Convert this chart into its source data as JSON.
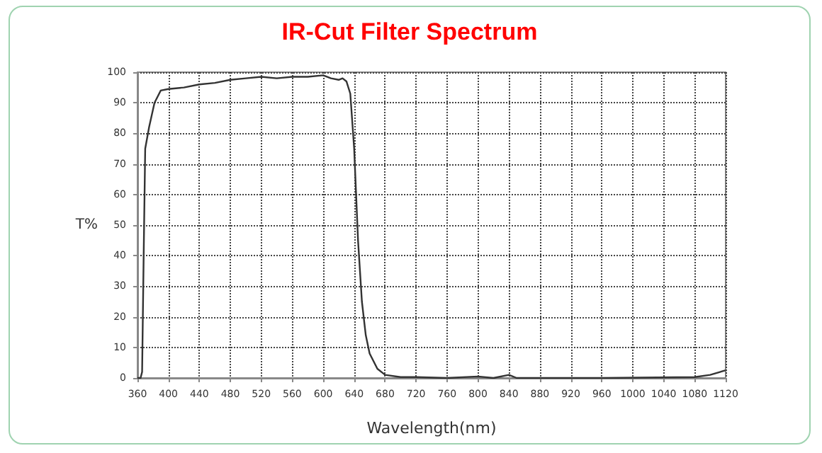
{
  "chart_data": {
    "type": "line",
    "title": "IR-Cut Filter Spectrum",
    "xlabel": "Wavelength(nm)",
    "ylabel": "T%",
    "x": [
      360,
      364,
      366,
      368,
      370,
      375,
      382,
      390,
      400,
      420,
      440,
      460,
      480,
      500,
      520,
      540,
      560,
      580,
      600,
      610,
      620,
      625,
      630,
      635,
      640,
      645,
      650,
      655,
      660,
      670,
      680,
      700,
      720,
      760,
      800,
      820,
      840,
      850,
      960,
      1080,
      1100,
      1120
    ],
    "values": [
      0,
      0,
      2,
      40,
      75,
      82,
      90,
      94,
      94.5,
      95,
      96,
      96.5,
      97.5,
      98,
      98.5,
      98,
      98.5,
      98.5,
      99,
      98,
      97.5,
      98,
      97,
      93,
      75,
      45,
      25,
      14,
      8,
      3,
      1,
      0.3,
      0.3,
      0,
      0.5,
      0,
      1,
      0,
      0,
      0.3,
      1,
      2.5
    ],
    "color": "#333333",
    "line_style": "solid",
    "marker": "none",
    "xlim": [
      360,
      1120
    ],
    "xticks": [
      360,
      400,
      440,
      480,
      520,
      560,
      600,
      640,
      680,
      720,
      760,
      800,
      840,
      880,
      920,
      960,
      1000,
      1040,
      1080,
      1120
    ],
    "ylim": [
      0,
      100
    ],
    "yticks": [
      0,
      10,
      20,
      30,
      40,
      50,
      60,
      70,
      80,
      90,
      100
    ],
    "grid": true
  }
}
